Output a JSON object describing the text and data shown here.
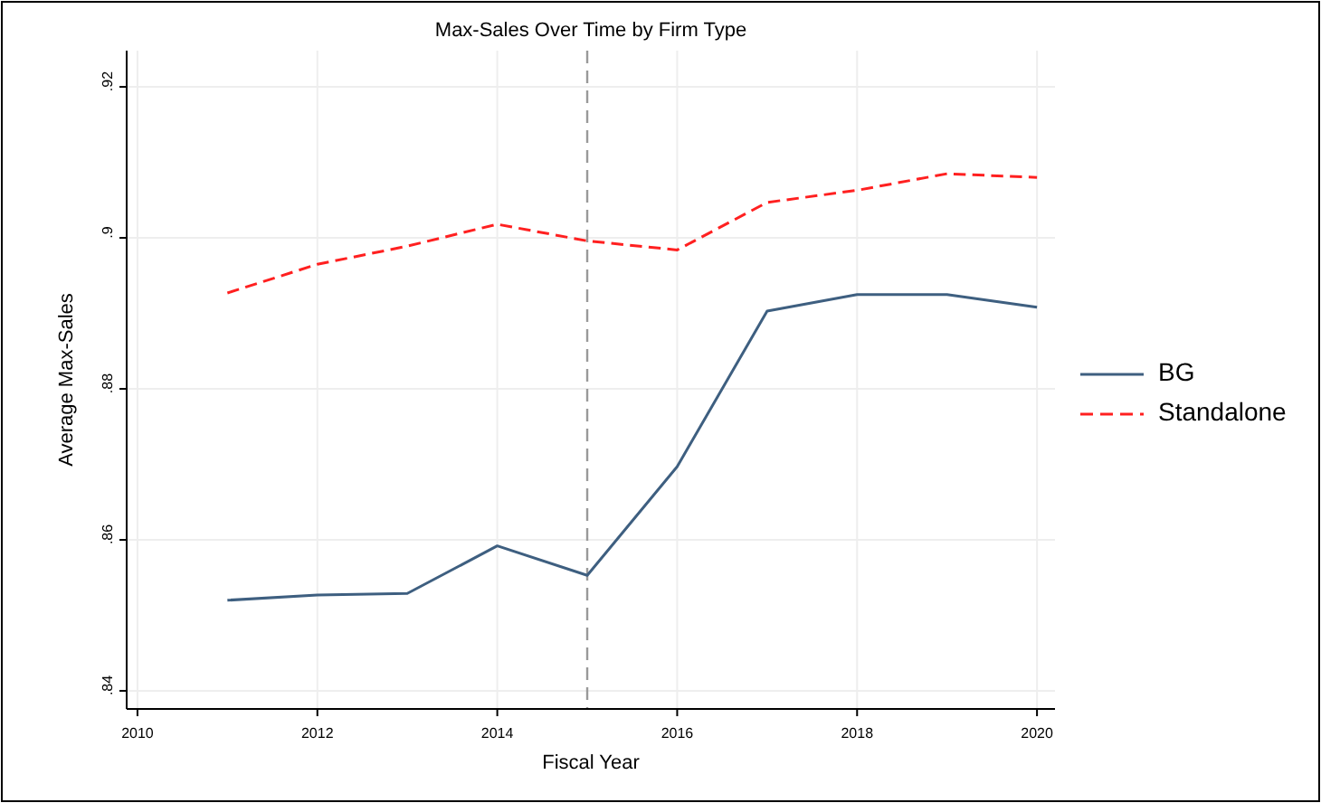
{
  "chart_data": {
    "type": "line",
    "title": "Max-Sales Over Time by Firm Type",
    "xlabel": "Fiscal Year",
    "ylabel": "Average Max-Sales",
    "x": [
      2011,
      2012,
      2013,
      2014,
      2015,
      2016,
      2017,
      2018,
      2019,
      2020
    ],
    "series": [
      {
        "name": "BG",
        "color": "#3e5f80",
        "values": [
          0.852,
          0.8527,
          0.8529,
          0.8592,
          0.8553,
          0.8697,
          0.8903,
          0.8925,
          0.8925,
          0.8908
        ],
        "line_style": "solid"
      },
      {
        "name": "Standalone",
        "color": "#ff2020",
        "values": [
          0.8927,
          0.8965,
          0.8989,
          0.9018,
          0.8996,
          0.8984,
          0.9047,
          0.9063,
          0.9085,
          0.908
        ],
        "line_style": "dashed"
      }
    ],
    "xlim": [
      2009.88,
      2020.2
    ],
    "ylim": [
      0.8376,
      0.9248
    ],
    "xticks": [
      2010,
      2012,
      2014,
      2016,
      2018,
      2020
    ],
    "yticks": [
      {
        "value": 0.84,
        "label": ".84"
      },
      {
        "value": 0.86,
        "label": ".86"
      },
      {
        "value": 0.88,
        "label": ".88"
      },
      {
        "value": 0.9,
        "label": ".9"
      },
      {
        "value": 0.92,
        "label": ".92"
      }
    ],
    "ref_lines": [
      {
        "axis": "x",
        "value": 2015,
        "label": null,
        "color": "#999999",
        "line_style": "dashed"
      }
    ],
    "grid": true,
    "legend": "right"
  }
}
